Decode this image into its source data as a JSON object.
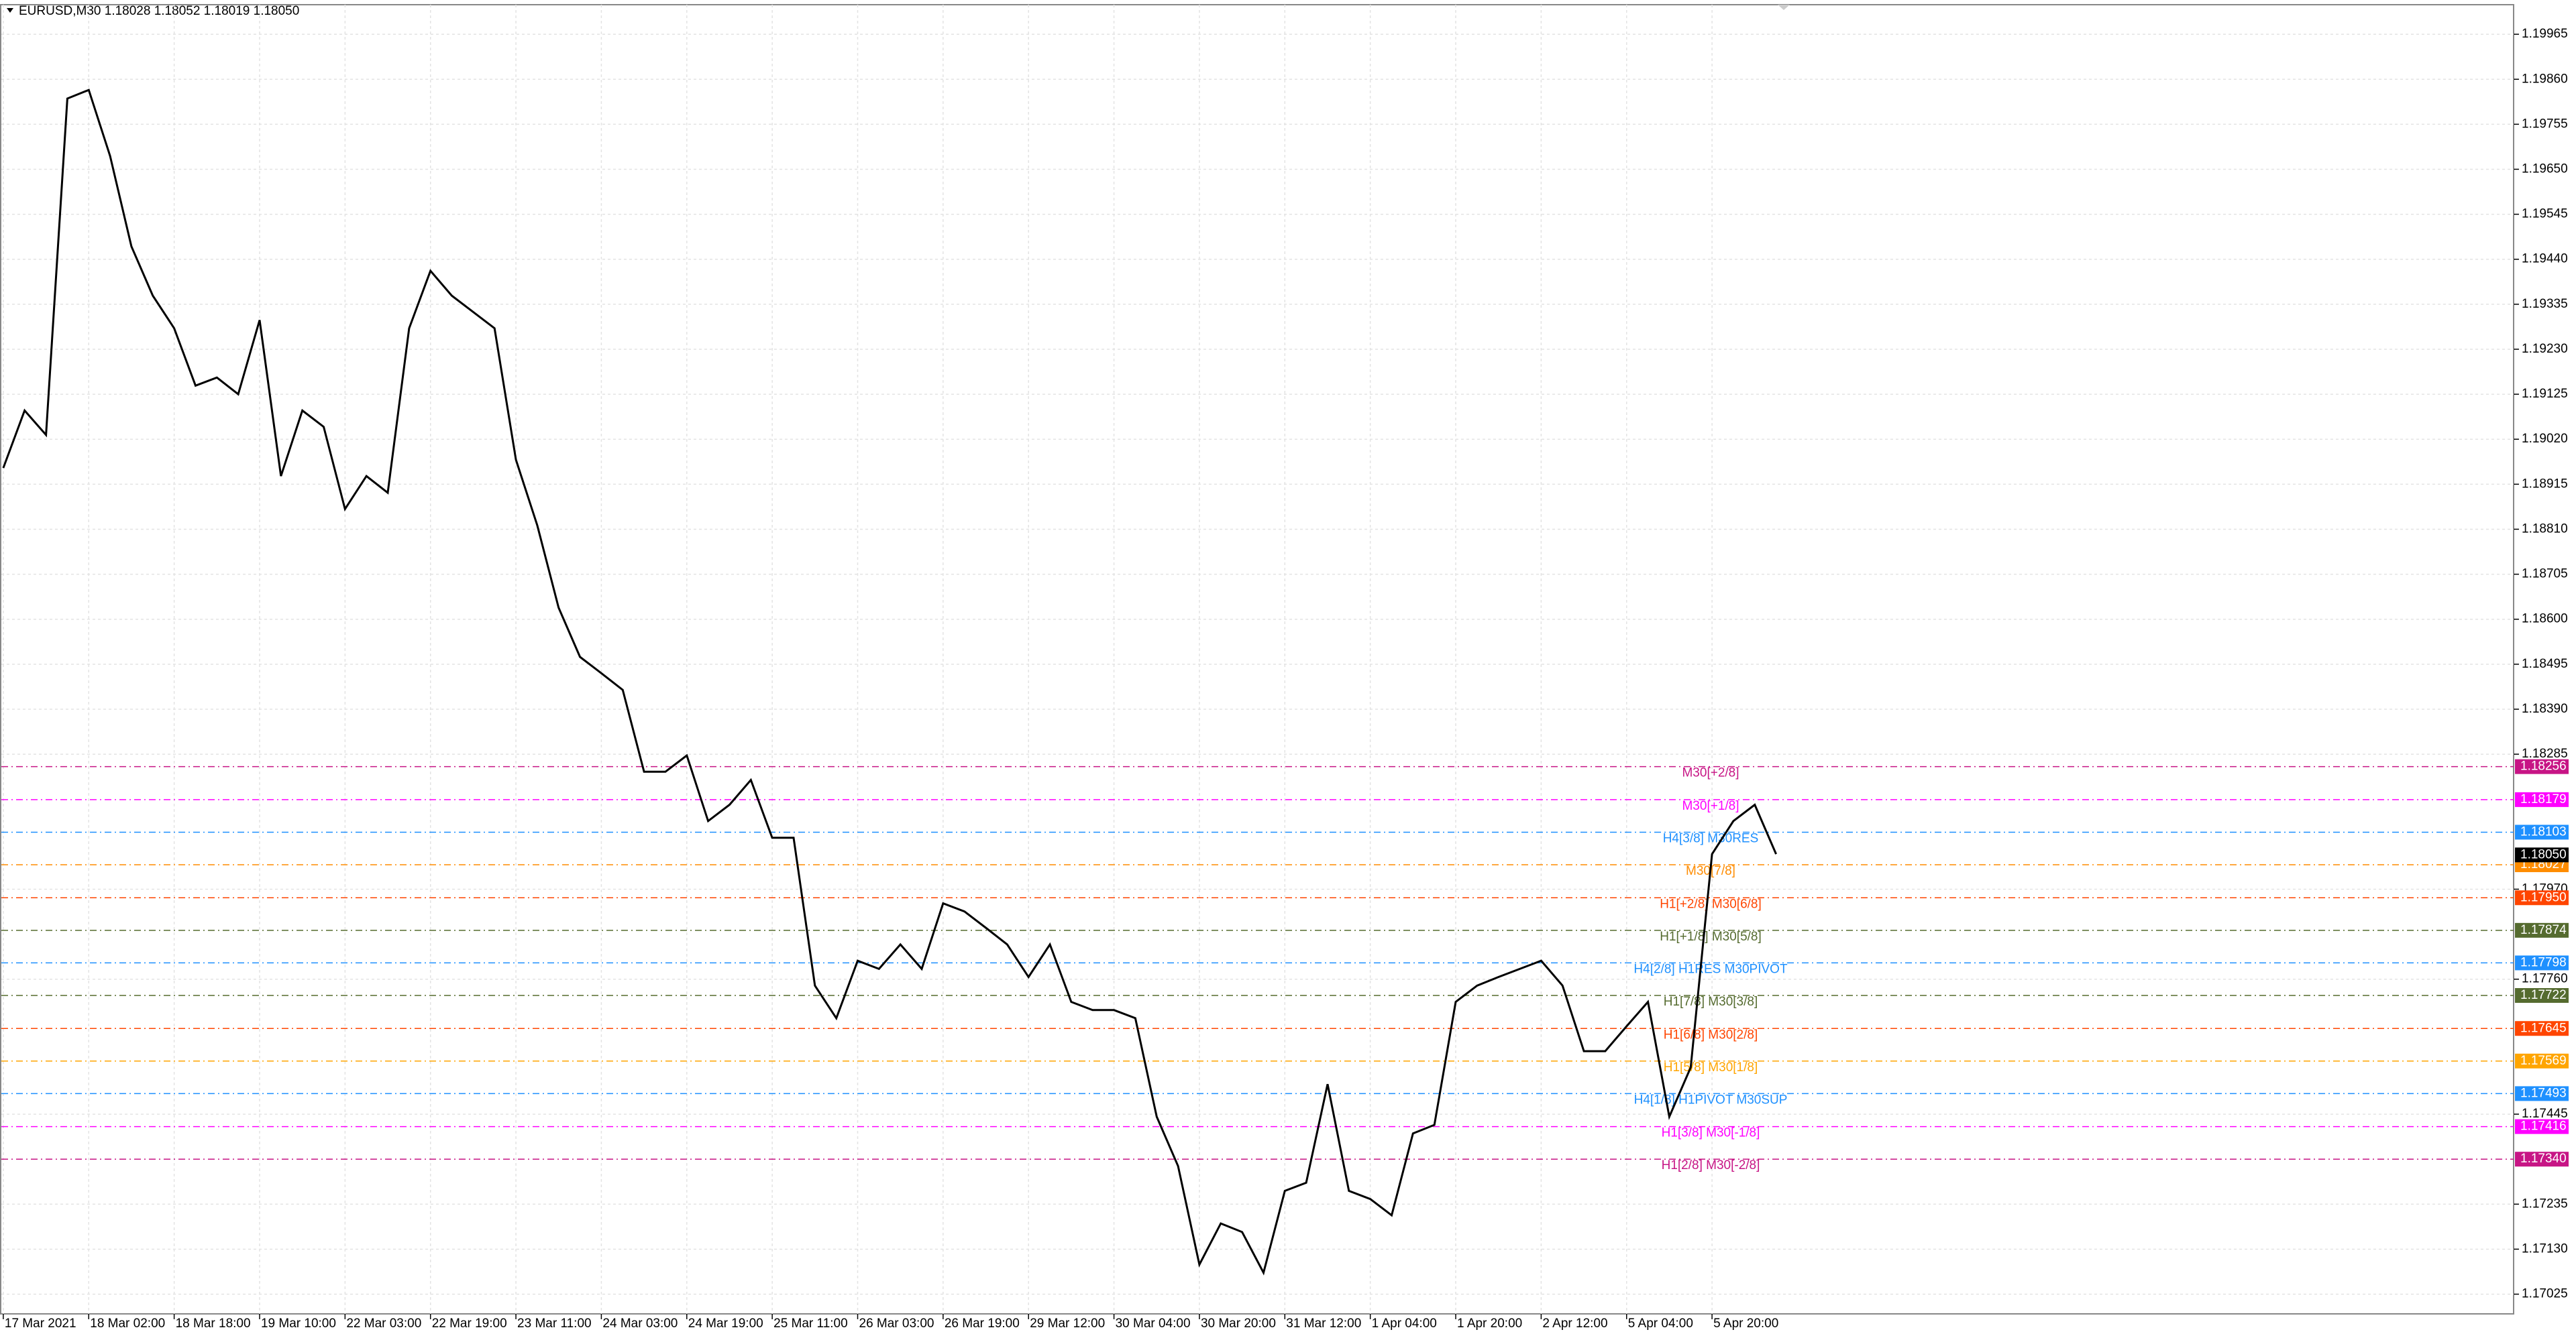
{
  "chart_data": {
    "type": "line",
    "title": "EURUSD,M30  1.18028 1.18052 1.18019 1.18050",
    "categories": [
      "17 Mar 2021",
      null,
      null,
      null,
      "18 Mar 02:00",
      null,
      null,
      null,
      "18 Mar 18:00",
      null,
      null,
      null,
      "19 Mar 10:00",
      null,
      null,
      null,
      "22 Mar 03:00",
      null,
      null,
      null,
      "22 Mar 19:00",
      null,
      null,
      null,
      "23 Mar 11:00",
      null,
      null,
      null,
      "24 Mar 03:00",
      null,
      null,
      null,
      "24 Mar 19:00",
      null,
      null,
      null,
      "25 Mar 11:00",
      null,
      null,
      null,
      "26 Mar 03:00",
      null,
      null,
      null,
      "26 Mar 19:00",
      null,
      null,
      null,
      "29 Mar 12:00",
      null,
      null,
      null,
      "30 Mar 04:00",
      null,
      null,
      null,
      "30 Mar 20:00",
      null,
      null,
      null,
      "31 Mar 12:00",
      null,
      null,
      null,
      "1 Apr 04:00",
      null,
      null,
      null,
      "1 Apr 20:00",
      null,
      null,
      null,
      "2 Apr 12:00",
      null,
      null,
      null,
      "5 Apr 04:00",
      null,
      null,
      null,
      "5 Apr 20:00",
      null,
      null,
      null
    ],
    "series": [
      {
        "color": "#000000",
        "values": [
          1.18953,
          1.19087,
          1.1903,
          1.19815,
          1.19835,
          1.19681,
          1.1947,
          1.19355,
          1.19279,
          1.19145,
          1.19164,
          1.19125,
          1.19298,
          1.18934,
          1.19087,
          1.19049,
          1.18857,
          1.18934,
          1.18895,
          1.19279,
          1.19413,
          1.19355,
          1.19317,
          1.19279,
          1.18972,
          1.18819,
          1.18627,
          1.18512,
          1.18474,
          1.18435,
          1.18244,
          1.18244,
          1.18282,
          1.18129,
          1.18167,
          1.18225,
          1.1809,
          1.1809,
          1.17745,
          1.17669,
          1.17803,
          1.17784,
          1.17841,
          1.17784,
          1.17937,
          1.17918,
          1.1788,
          1.17841,
          1.17765,
          1.17841,
          1.17707,
          1.17688,
          1.17688,
          1.17669,
          1.17439,
          1.17324,
          1.17094,
          1.1719,
          1.1717,
          1.17075,
          1.17266,
          1.17285,
          1.17515,
          1.17266,
          1.17247,
          1.17209,
          1.174,
          1.1742,
          1.17707,
          1.17745,
          1.17765,
          1.17784,
          1.17803,
          1.17745,
          1.17592,
          1.17592,
          1.1765,
          1.17707,
          1.17439,
          1.17554,
          1.18052,
          1.18129,
          1.18167,
          1.18052
        ]
      }
    ],
    "ylim": [
      1.20034,
      1.16979
    ],
    "yticks": [
      {
        "value": 1.19965,
        "label": "1.19965"
      },
      {
        "value": 1.1986,
        "label": "1.19860"
      },
      {
        "value": 1.19755,
        "label": "1.19755"
      },
      {
        "value": 1.1965,
        "label": "1.19650"
      },
      {
        "value": 1.19545,
        "label": "1.19545"
      },
      {
        "value": 1.1944,
        "label": "1.19440"
      },
      {
        "value": 1.19335,
        "label": "1.19335"
      },
      {
        "value": 1.1923,
        "label": "1.19230"
      },
      {
        "value": 1.19125,
        "label": "1.19125"
      },
      {
        "value": 1.1902,
        "label": "1.19020"
      },
      {
        "value": 1.18915,
        "label": "1.18915"
      },
      {
        "value": 1.1881,
        "label": "1.18810"
      },
      {
        "value": 1.18705,
        "label": "1.18705"
      },
      {
        "value": 1.186,
        "label": "1.18600"
      },
      {
        "value": 1.18495,
        "label": "1.18495"
      },
      {
        "value": 1.1839,
        "label": "1.18390"
      },
      {
        "value": 1.18285,
        "label": "1.18285"
      },
      {
        "value": 1.1797,
        "label": "1.17970"
      },
      {
        "value": 1.1776,
        "label": "1.17760"
      },
      {
        "value": 1.17445,
        "label": "1.17445"
      },
      {
        "value": 1.17235,
        "label": "1.17235"
      },
      {
        "value": 1.1713,
        "label": "1.17130"
      },
      {
        "value": 1.17025,
        "label": "1.17025"
      }
    ],
    "grid": true,
    "levels": {
      "names": [
        "M30[+2/8]",
        "M30[+1/8]",
        "H4[3/8] M30RES",
        "M30[7/8]",
        "H1[+2/8] M30[6/8]",
        "H1[+1/8] M30[5/8]",
        "H4[2/8] H1RES M30PIVOT",
        "H1[7/8] M30[3/8]",
        "H1[6/8] M30[2/8]",
        "H1[5/8] M30[1/8]",
        "H4[1/8] H1PIVOT M30SUP",
        "H1[3/8] M30[-1/8]",
        "H1[2/8] M30[-2/8]"
      ],
      "values": [
        1.18256,
        1.18179,
        1.18103,
        1.18027,
        1.1795,
        1.17874,
        1.17798,
        1.17722,
        1.17645,
        1.17569,
        1.17493,
        1.17416,
        1.1734
      ],
      "value_labels": [
        "1.18256",
        "1.18179",
        "1.18103",
        "1.18027",
        "1.17950",
        "1.17874",
        "1.17798",
        "1.17722",
        "1.17645",
        "1.17569",
        "1.17493",
        "1.17416",
        "1.17340"
      ],
      "colors": [
        "#c71585",
        "#ff00ff",
        "#1e90ff",
        "#ff8c00",
        "#ff4500",
        "#556b2f",
        "#1e90ff",
        "#556b2f",
        "#ff4500",
        "#ffa500",
        "#1e90ff",
        "#ff00ff",
        "#c71585"
      ]
    },
    "current_price": 1.1805,
    "current_price_label": "1.18050"
  }
}
